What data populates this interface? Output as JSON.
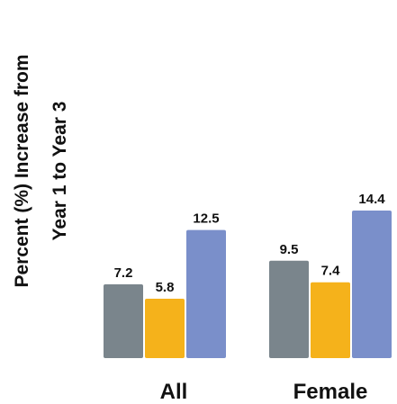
{
  "chart_data": {
    "type": "bar",
    "ylabel_lines": [
      "Percent (%) Increase from",
      "Year 1 to Year 3"
    ],
    "categories": [
      "All",
      "Female"
    ],
    "series": [
      {
        "values": [
          7.2,
          9.5
        ],
        "color": "#7a858c"
      },
      {
        "values": [
          5.8,
          7.4
        ],
        "color": "#f5b21b"
      },
      {
        "values": [
          12.5,
          14.4
        ],
        "color": "#7a8fca"
      }
    ],
    "value_labels": [
      [
        "7.2",
        "9.5"
      ],
      [
        "5.8",
        "7.4"
      ],
      [
        "12.5",
        "14.4"
      ]
    ],
    "ylim": [
      0,
      14.4
    ],
    "grid": false,
    "legend": "none"
  }
}
